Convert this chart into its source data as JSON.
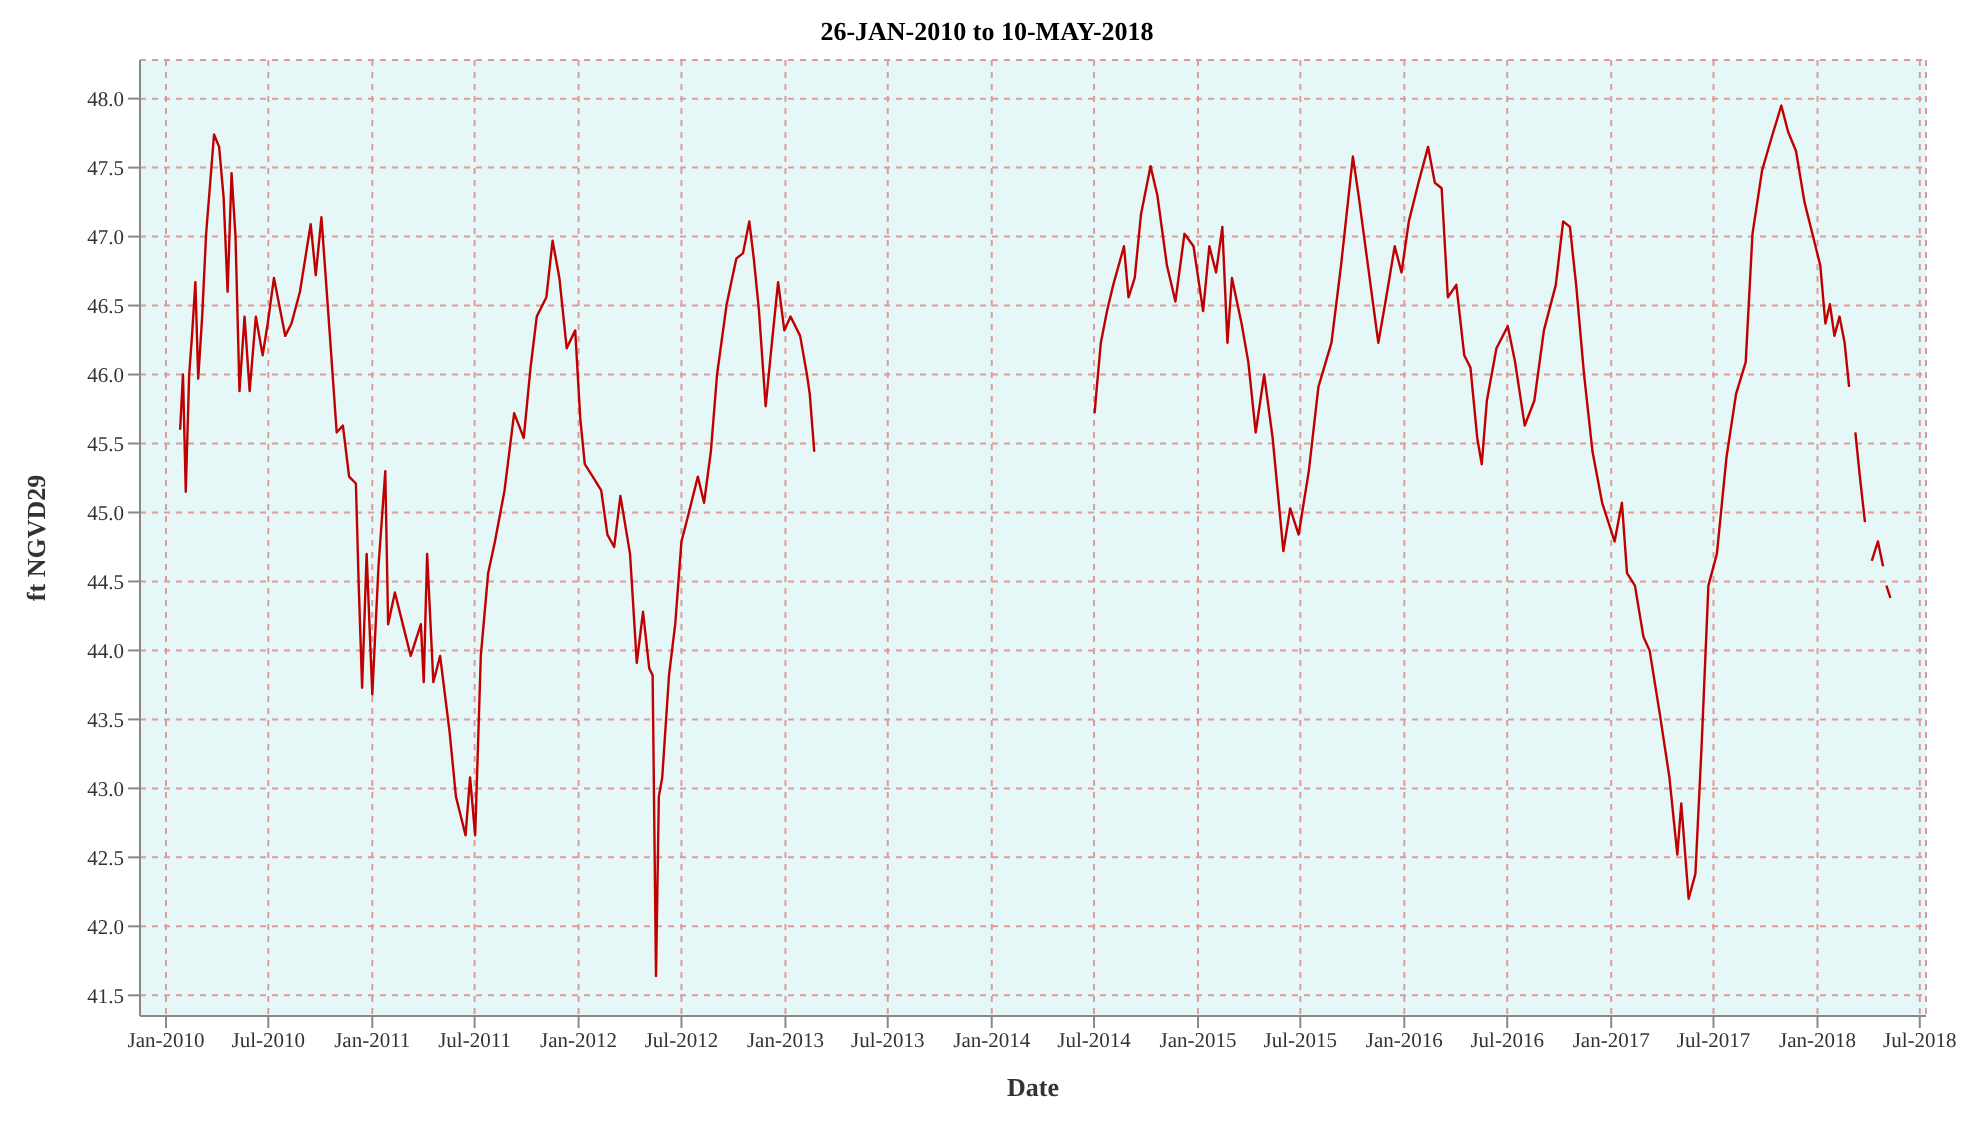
{
  "chart_data": {
    "type": "line",
    "title": "26-JAN-2010 to 10-MAY-2018",
    "xlabel": "Date",
    "ylabel": "ft NGVD29",
    "xlim": [
      "2009-11-16",
      "2018-07-12"
    ],
    "xticks": [
      {
        "value": "2010-01-01",
        "label": "Jan-2010"
      },
      {
        "value": "2010-07-01",
        "label": "Jul-2010"
      },
      {
        "value": "2011-01-01",
        "label": "Jan-2011"
      },
      {
        "value": "2011-07-01",
        "label": "Jul-2011"
      },
      {
        "value": "2012-01-01",
        "label": "Jan-2012"
      },
      {
        "value": "2012-07-01",
        "label": "Jul-2012"
      },
      {
        "value": "2013-01-01",
        "label": "Jan-2013"
      },
      {
        "value": "2013-07-01",
        "label": "Jul-2013"
      },
      {
        "value": "2014-01-01",
        "label": "Jan-2014"
      },
      {
        "value": "2014-07-01",
        "label": "Jul-2014"
      },
      {
        "value": "2015-01-01",
        "label": "Jan-2015"
      },
      {
        "value": "2015-07-01",
        "label": "Jul-2015"
      },
      {
        "value": "2016-01-01",
        "label": "Jan-2016"
      },
      {
        "value": "2016-07-01",
        "label": "Jul-2016"
      },
      {
        "value": "2017-01-01",
        "label": "Jan-2017"
      },
      {
        "value": "2017-07-01",
        "label": "Jul-2017"
      },
      {
        "value": "2018-01-01",
        "label": "Jan-2018"
      },
      {
        "value": "2018-07-01",
        "label": "Jul-2018"
      }
    ],
    "ylim": [
      41.35,
      48.28
    ],
    "yticks": [
      {
        "value": 41.5,
        "label": "41.5"
      },
      {
        "value": 42,
        "label": "42.0"
      },
      {
        "value": 42.5,
        "label": "42.5"
      },
      {
        "value": 43,
        "label": "43.0"
      },
      {
        "value": 43.5,
        "label": "43.5"
      },
      {
        "value": 44,
        "label": "44.0"
      },
      {
        "value": 44.5,
        "label": "44.5"
      },
      {
        "value": 45,
        "label": "45.0"
      },
      {
        "value": 45.5,
        "label": "45.5"
      },
      {
        "value": 46,
        "label": "46.0"
      },
      {
        "value": 46.5,
        "label": "46.5"
      },
      {
        "value": 47,
        "label": "47.0"
      },
      {
        "value": 47.5,
        "label": "47.5"
      },
      {
        "value": 48,
        "label": "48.0"
      }
    ],
    "grid": true,
    "marker": "none",
    "line_style": "solid",
    "series": [
      {
        "color": "#c00000",
        "x": [
          "2010-01-26",
          "2010-01-31",
          "2010-02-05",
          "2010-02-11",
          "2010-02-16",
          "2010-02-22",
          "2010-02-27",
          "2010-03-06",
          "2010-03-13",
          "2010-03-27",
          "2010-04-05",
          "2010-04-13",
          "2010-04-20",
          "2010-04-27",
          "2010-05-04",
          "2010-05-11",
          "2010-05-20",
          "2010-05-29",
          "2010-06-09",
          "2010-06-21",
          "2010-06-30",
          "2010-07-11",
          "2010-07-31",
          "2010-08-11",
          "2010-08-26",
          "2010-09-14",
          "2010-09-23",
          "2010-10-03",
          "2010-10-18",
          "2010-10-30",
          "2010-11-10",
          "2010-11-21",
          "2010-12-03",
          "2010-12-08",
          "2010-12-14",
          "2010-12-22",
          "2011-01-01",
          "2011-01-12",
          "2011-01-24",
          "2011-01-29",
          "2011-02-10",
          "2011-02-27",
          "2011-03-10",
          "2011-03-28",
          "2011-04-02",
          "2011-04-08",
          "2011-04-19",
          "2011-05-01",
          "2011-05-18",
          "2011-05-29",
          "2011-06-15",
          "2011-06-23",
          "2011-07-02",
          "2011-07-12",
          "2011-07-25",
          "2011-08-06",
          "2011-08-23",
          "2011-09-09",
          "2011-09-26",
          "2011-10-08",
          "2011-10-19",
          "2011-11-05",
          "2011-11-16",
          "2011-11-28",
          "2011-12-11",
          "2011-12-26",
          "2012-01-04",
          "2012-01-12",
          "2012-01-26",
          "2012-02-10",
          "2012-02-21",
          "2012-03-04",
          "2012-03-15",
          "2012-04-01",
          "2012-04-13",
          "2012-04-24",
          "2012-05-05",
          "2012-05-11",
          "2012-05-17",
          "2012-05-22",
          "2012-05-28",
          "2012-06-09",
          "2012-06-20",
          "2012-07-01",
          "2012-07-13",
          "2012-07-30",
          "2012-08-10",
          "2012-08-22",
          "2012-09-02",
          "2012-09-19",
          "2012-10-06",
          "2012-10-18",
          "2012-10-29",
          "2012-11-06",
          "2012-11-15",
          "2012-11-27",
          "2012-12-08",
          "2012-12-19",
          "2012-12-30",
          "2013-01-10",
          "2013-01-27",
          "2013-02-08",
          "2013-02-13",
          "2013-02-21",
          "2013-10-01",
          "2014-07-02",
          "2014-07-06",
          "2014-07-13",
          "2014-07-24",
          "2014-08-04",
          "2014-08-23",
          "2014-08-31",
          "2014-09-11",
          "2014-09-22",
          "2014-10-09",
          "2014-10-21",
          "2014-11-07",
          "2014-11-22",
          "2014-12-08",
          "2014-12-24",
          "2015-01-10",
          "2015-01-21",
          "2015-02-02",
          "2015-02-13",
          "2015-02-22",
          "2015-03-02",
          "2015-03-19",
          "2015-03-31",
          "2015-04-13",
          "2015-04-28",
          "2015-05-13",
          "2015-06-01",
          "2015-06-13",
          "2015-06-28",
          "2015-07-16",
          "2015-08-02",
          "2015-08-25",
          "2015-09-11",
          "2015-10-02",
          "2015-10-12",
          "2015-10-27",
          "2015-11-16",
          "2015-11-30",
          "2015-12-15",
          "2015-12-27",
          "2016-01-09",
          "2016-01-26",
          "2016-02-12",
          "2016-02-24",
          "2016-03-07",
          "2016-03-18",
          "2016-04-02",
          "2016-04-16",
          "2016-04-27",
          "2016-05-09",
          "2016-05-17",
          "2016-05-26",
          "2016-06-12",
          "2016-07-02",
          "2016-07-15",
          "2016-08-01",
          "2016-08-18",
          "2016-09-04",
          "2016-09-25",
          "2016-10-08",
          "2016-10-20",
          "2016-10-31",
          "2016-11-14",
          "2016-11-29",
          "2016-12-16",
          "2017-01-07",
          "2017-01-20",
          "2017-01-29",
          "2017-02-12",
          "2017-02-27",
          "2017-03-10",
          "2017-03-28",
          "2017-04-14",
          "2017-04-28",
          "2017-05-05",
          "2017-05-18",
          "2017-05-30",
          "2017-06-10",
          "2017-06-22",
          "2017-07-07",
          "2017-07-24",
          "2017-08-10",
          "2017-08-27",
          "2017-09-08",
          "2017-09-25",
          "2017-10-12",
          "2017-10-29",
          "2017-11-10",
          "2017-11-24",
          "2017-12-09",
          "2017-12-23",
          "2018-01-06",
          "2018-01-15",
          "2018-01-23",
          "2018-01-31",
          "2018-02-09",
          "2018-02-18",
          "2018-02-26",
          "2018-03-03",
          "2018-03-09",
          "2018-03-17",
          "2018-03-26",
          "2018-04-01",
          "2018-04-07",
          "2018-04-18",
          "2018-04-27",
          "2018-04-30",
          "2018-05-03",
          "2018-05-10"
        ],
        "values": [
          45.6,
          46.0,
          45.15,
          46.0,
          46.28,
          46.67,
          45.97,
          46.42,
          47.02,
          47.74,
          47.65,
          47.28,
          46.6,
          47.46,
          47.0,
          45.88,
          46.42,
          45.88,
          46.42,
          46.14,
          46.37,
          46.7,
          46.28,
          46.37,
          46.6,
          47.09,
          46.72,
          47.14,
          46.28,
          45.58,
          45.63,
          45.26,
          45.21,
          44.47,
          43.73,
          44.7,
          43.68,
          44.61,
          45.3,
          44.19,
          44.42,
          44.14,
          43.96,
          44.19,
          43.77,
          44.7,
          43.77,
          43.96,
          43.4,
          42.94,
          42.66,
          43.08,
          42.66,
          43.96,
          44.56,
          44.79,
          45.16,
          45.72,
          45.54,
          46.05,
          46.42,
          46.56,
          46.97,
          46.7,
          46.19,
          46.32,
          45.68,
          45.35,
          45.26,
          45.16,
          44.84,
          44.75,
          45.12,
          44.7,
          43.91,
          44.28,
          43.87,
          43.82,
          41.64,
          42.94,
          43.08,
          43.82,
          44.19,
          44.79,
          44.98,
          45.26,
          45.07,
          45.44,
          46.0,
          46.51,
          46.84,
          46.88,
          47.11,
          46.84,
          46.47,
          45.77,
          46.23,
          46.67,
          46.32,
          46.42,
          46.28,
          46.0,
          45.86,
          45.44,
          null,
          45.72,
          45.91,
          46.23,
          46.46,
          46.65,
          46.93,
          46.56,
          46.7,
          47.16,
          47.51,
          47.3,
          46.79,
          46.53,
          47.02,
          46.93,
          46.46,
          46.93,
          46.74,
          47.07,
          46.23,
          46.7,
          46.37,
          46.09,
          45.58,
          46.0,
          45.54,
          44.72,
          45.03,
          44.84,
          45.3,
          45.91,
          46.23,
          46.79,
          47.58,
          47.3,
          46.84,
          46.23,
          46.56,
          46.93,
          46.74,
          47.11,
          47.39,
          47.65,
          47.39,
          47.35,
          46.56,
          46.65,
          46.14,
          46.05,
          45.54,
          45.35,
          45.81,
          46.19,
          46.35,
          46.09,
          45.63,
          45.81,
          46.32,
          46.65,
          47.11,
          47.07,
          46.65,
          46.0,
          45.44,
          45.07,
          44.79,
          45.07,
          44.56,
          44.47,
          44.1,
          44.0,
          43.54,
          43.08,
          42.52,
          42.89,
          42.2,
          42.38,
          43.31,
          44.47,
          44.7,
          45.4,
          45.86,
          46.09,
          47.02,
          47.48,
          47.72,
          47.95,
          47.76,
          47.62,
          47.25,
          47.02,
          46.79,
          46.37,
          46.51,
          46.28,
          46.42,
          46.23,
          45.91,
          null,
          45.58,
          45.26,
          44.93,
          null,
          44.65,
          44.79,
          44.61,
          null,
          44.47,
          44.38
        ]
      }
    ]
  }
}
